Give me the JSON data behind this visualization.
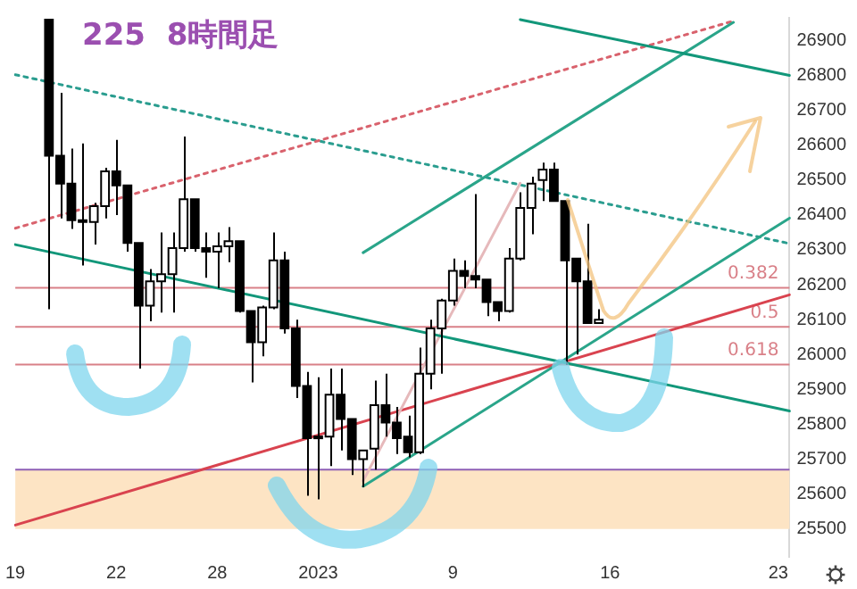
{
  "chart_data": {
    "type": "candlestick",
    "title": "225  8時間足",
    "categories": [
      "19",
      null,
      null,
      null,
      null,
      null,
      null,
      null,
      null,
      "22",
      null,
      null,
      null,
      null,
      null,
      null,
      null,
      null,
      "28",
      null,
      null,
      null,
      null,
      null,
      null,
      null,
      null,
      "2023",
      null,
      null,
      null,
      null,
      null,
      null,
      null,
      null,
      null,
      null,
      null,
      "9",
      null,
      null,
      null,
      null,
      null,
      null,
      null,
      null,
      null,
      null,
      null,
      null,
      null,
      "16",
      null,
      null,
      null,
      null,
      null,
      null,
      null,
      null,
      null,
      null,
      null,
      null,
      null,
      null,
      "23",
      null
    ],
    "ohlc": [
      null,
      null,
      null,
      [
        26960,
        26960,
        26130,
        26570
      ],
      [
        26570,
        26750,
        26390,
        26490
      ],
      [
        26490,
        26590,
        26360,
        26385
      ],
      [
        26385,
        26605,
        26255,
        26380
      ],
      [
        26380,
        26435,
        26315,
        26425
      ],
      [
        26425,
        26535,
        26390,
        26525
      ],
      [
        26525,
        26615,
        26400,
        26485
      ],
      [
        26485,
        26485,
        26295,
        26320
      ],
      [
        26320,
        26320,
        25960,
        26140
      ],
      [
        26140,
        26245,
        26095,
        26210
      ],
      [
        26210,
        26350,
        26120,
        26230
      ],
      [
        26230,
        26350,
        26120,
        26305
      ],
      [
        26305,
        26625,
        26295,
        26445
      ],
      [
        26445,
        26445,
        26295,
        26305
      ],
      [
        26305,
        26350,
        26220,
        26295
      ],
      [
        26295,
        26350,
        26190,
        26310
      ],
      [
        26310,
        26365,
        26265,
        26325
      ],
      [
        26325,
        26325,
        26120,
        26125
      ],
      [
        26125,
        26125,
        25920,
        26035
      ],
      [
        26035,
        26140,
        25995,
        26135
      ],
      [
        26135,
        26350,
        26130,
        26270
      ],
      [
        26270,
        26295,
        26060,
        26075
      ],
      [
        26075,
        26100,
        25875,
        25910
      ],
      [
        25910,
        25950,
        25595,
        25760
      ],
      [
        25765,
        25935,
        25585,
        25760
      ],
      [
        25765,
        25960,
        25680,
        25885
      ],
      [
        25885,
        25960,
        25725,
        25815
      ],
      [
        25815,
        25815,
        25655,
        25700
      ],
      [
        25700,
        25725,
        25620,
        25725
      ],
      [
        25730,
        25925,
        25670,
        25855
      ],
      [
        25855,
        25945,
        25765,
        25805
      ],
      [
        25805,
        25850,
        25715,
        25760
      ],
      [
        25765,
        25825,
        25705,
        25720
      ],
      [
        25720,
        26020,
        25715,
        25945
      ],
      [
        25945,
        26100,
        25900,
        26075
      ],
      [
        26075,
        26160,
        25945,
        26155
      ],
      [
        26155,
        26275,
        26140,
        26240
      ],
      [
        26240,
        26270,
        26190,
        26225
      ],
      [
        26225,
        26460,
        26190,
        26215
      ],
      [
        26215,
        26215,
        26110,
        26150
      ],
      [
        26150,
        26150,
        26095,
        26125
      ],
      [
        26125,
        26305,
        26120,
        26275
      ],
      [
        26275,
        26465,
        26270,
        26420
      ],
      [
        26420,
        26510,
        26345,
        26490
      ],
      [
        26500,
        26550,
        26440,
        26530
      ],
      [
        26530,
        26550,
        26440,
        26440
      ],
      [
        26440,
        26440,
        25970,
        26270
      ],
      [
        26275,
        26275,
        26000,
        26210
      ],
      [
        26210,
        26375,
        26090,
        26090
      ],
      [
        26090,
        26130,
        26090,
        26100
      ],
      null,
      null,
      null,
      null,
      null,
      null,
      null,
      null,
      null,
      null,
      null,
      null,
      null,
      null,
      null,
      null,
      null
    ],
    "series": [
      {
        "type": "line",
        "color": "#12977a",
        "values": [
          26315,
          null,
          null,
          null,
          null,
          null,
          null,
          null,
          null,
          null,
          null,
          null,
          null,
          null,
          null,
          null,
          null,
          null,
          null,
          null,
          null,
          null,
          null,
          null,
          null,
          null,
          null,
          null,
          null,
          null,
          null,
          null,
          null,
          null,
          null,
          null,
          null,
          null,
          null,
          null,
          null,
          null,
          null,
          null,
          null,
          null,
          null,
          null,
          null,
          null,
          null,
          null,
          null,
          null,
          null,
          null,
          null,
          null,
          null,
          null,
          null,
          null,
          null,
          null,
          null,
          null,
          null,
          null,
          null,
          25838
        ]
      },
      {
        "type": "line",
        "color": "#12977a",
        "values": [
          null,
          null,
          null,
          null,
          null,
          null,
          null,
          null,
          null,
          null,
          null,
          null,
          null,
          null,
          null,
          null,
          null,
          null,
          null,
          null,
          null,
          null,
          null,
          null,
          null,
          null,
          null,
          null,
          null,
          null,
          null,
          null,
          null,
          null,
          null,
          null,
          null,
          null,
          null,
          null,
          null,
          null,
          null,
          null,
          null,
          26960,
          null,
          null,
          null,
          null,
          null,
          null,
          null,
          null,
          null,
          null,
          null,
          null,
          null,
          null,
          null,
          null,
          null,
          null,
          null,
          null,
          null,
          null,
          null,
          26800
        ]
      },
      {
        "type": "line",
        "color": "#2aa58a",
        "values": [
          null,
          null,
          null,
          null,
          null,
          null,
          null,
          null,
          null,
          null,
          null,
          null,
          null,
          null,
          null,
          null,
          null,
          null,
          null,
          null,
          null,
          null,
          null,
          null,
          null,
          null,
          null,
          null,
          null,
          null,
          null,
          25622,
          null,
          null,
          null,
          null,
          null,
          null,
          null,
          null,
          null,
          null,
          null,
          null,
          null,
          null,
          null,
          null,
          null,
          null,
          null,
          null,
          null,
          null,
          null,
          null,
          null,
          null,
          null,
          null,
          null,
          null,
          null,
          null,
          null,
          null,
          null,
          null,
          null,
          26391
        ]
      },
      {
        "type": "line",
        "color": "#2aa58a",
        "values": [
          null,
          null,
          null,
          null,
          null,
          null,
          null,
          null,
          null,
          null,
          null,
          null,
          null,
          null,
          null,
          null,
          null,
          null,
          null,
          null,
          null,
          null,
          null,
          null,
          null,
          null,
          null,
          null,
          null,
          null,
          null,
          26292,
          null,
          null,
          null,
          null,
          null,
          null,
          null,
          null,
          null,
          null,
          null,
          null,
          null,
          null,
          null,
          null,
          null,
          null,
          null,
          null,
          null,
          null,
          null,
          null,
          null,
          null,
          null,
          null,
          null,
          null,
          null,
          null,
          26952,
          null,
          null,
          null,
          null,
          null
        ]
      },
      {
        "type": "line",
        "color": "#e6b9bb",
        "values": [
          null,
          null,
          null,
          null,
          null,
          null,
          null,
          null,
          null,
          null,
          null,
          null,
          null,
          null,
          null,
          null,
          null,
          null,
          null,
          null,
          null,
          null,
          null,
          null,
          null,
          null,
          null,
          null,
          null,
          null,
          null,
          25638,
          null,
          null,
          null,
          null,
          null,
          null,
          null,
          null,
          null,
          null,
          null,
          null,
          null,
          26491,
          null,
          null,
          null,
          null,
          null,
          null,
          null,
          null,
          null,
          null,
          null,
          null,
          null,
          null,
          null,
          null,
          null,
          null,
          null,
          null,
          null,
          null,
          null,
          null
        ]
      },
      {
        "type": "line",
        "color": "#d9434f",
        "values": [
          25511,
          null,
          null,
          null,
          null,
          null,
          null,
          null,
          null,
          null,
          null,
          null,
          null,
          null,
          null,
          null,
          null,
          null,
          null,
          null,
          null,
          null,
          null,
          null,
          null,
          null,
          null,
          null,
          null,
          null,
          null,
          null,
          null,
          null,
          null,
          null,
          null,
          null,
          null,
          null,
          null,
          null,
          null,
          null,
          null,
          null,
          null,
          null,
          null,
          null,
          null,
          null,
          null,
          null,
          null,
          null,
          null,
          null,
          null,
          null,
          null,
          null,
          null,
          null,
          null,
          null,
          null,
          null,
          null,
          26171
        ]
      },
      {
        "type": "line",
        "color": "#d9626d",
        "line_style": "dotted",
        "values": [
          26362,
          null,
          null,
          null,
          null,
          null,
          null,
          null,
          null,
          null,
          null,
          null,
          null,
          null,
          null,
          null,
          null,
          null,
          null,
          null,
          null,
          null,
          null,
          null,
          null,
          null,
          null,
          null,
          null,
          null,
          null,
          null,
          null,
          null,
          null,
          null,
          null,
          null,
          null,
          null,
          null,
          null,
          null,
          null,
          null,
          null,
          null,
          null,
          null,
          null,
          null,
          null,
          null,
          null,
          null,
          null,
          null,
          null,
          null,
          null,
          null,
          null,
          null,
          null,
          26956,
          null,
          null,
          null,
          null,
          null
        ]
      },
      {
        "type": "line",
        "color": "#2a9d8f",
        "line_style": "dotted",
        "values": [
          26802,
          null,
          null,
          null,
          null,
          null,
          null,
          null,
          null,
          null,
          null,
          null,
          null,
          null,
          null,
          null,
          null,
          null,
          null,
          null,
          null,
          null,
          null,
          null,
          null,
          null,
          null,
          null,
          null,
          null,
          null,
          null,
          null,
          null,
          null,
          null,
          null,
          null,
          null,
          null,
          null,
          null,
          null,
          null,
          null,
          null,
          null,
          null,
          null,
          null,
          null,
          null,
          null,
          null,
          null,
          null,
          null,
          null,
          null,
          null,
          null,
          null,
          null,
          null,
          null,
          null,
          null,
          null,
          null,
          26318
        ]
      }
    ],
    "ref_lines": [
      {
        "axis": "y",
        "value": 26191,
        "color": "#d98088"
      },
      {
        "axis": "y",
        "value": 26079,
        "color": "#d98088"
      },
      {
        "axis": "y",
        "value": 25971,
        "color": "#d98088"
      },
      {
        "axis": "y",
        "value": 25670,
        "color": "#8e5fb5"
      }
    ],
    "annotations": [
      {
        "text": "0.382",
        "y": 26191
      },
      {
        "text": "0.5",
        "y": 26079
      },
      {
        "text": "0.618",
        "y": 25971
      }
    ],
    "bands": [
      {
        "axis": "y",
        "from": 25500,
        "to": 25670,
        "color": "#fde4c4"
      }
    ],
    "ylim": [
      25420,
      26965
    ],
    "yticks": [
      25500,
      25600,
      25700,
      25800,
      25900,
      26000,
      26100,
      26200,
      26300,
      26400,
      26500,
      26600,
      26700,
      26800,
      26900
    ],
    "grid": false,
    "legend": false
  }
}
